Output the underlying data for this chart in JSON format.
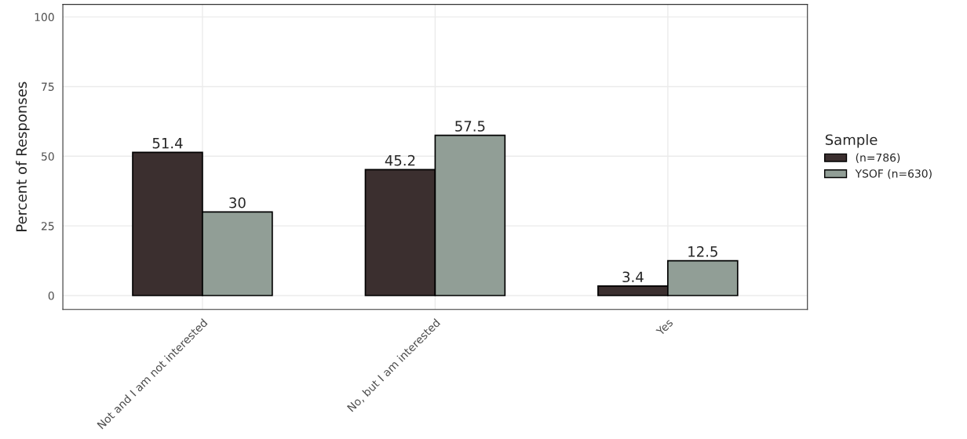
{
  "chart_data": {
    "type": "bar",
    "ylabel": "Percent of Responses",
    "legend_title": "Sample",
    "categories": [
      "Not and I am not interested",
      "No, but I am interested",
      "Yes"
    ],
    "series": [
      {
        "name": "(n=786)",
        "color": "#3b2f2f",
        "values": [
          51.4,
          45.2,
          3.4
        ]
      },
      {
        "name": "YSOF (n=630)",
        "color": "#919e96",
        "values": [
          30,
          57.5,
          12.5
        ]
      }
    ],
    "ylim": [
      -5,
      104.5
    ],
    "yticks": [
      0,
      25,
      50,
      75,
      100
    ],
    "grid": true,
    "legend": "right",
    "data_labels": true
  }
}
